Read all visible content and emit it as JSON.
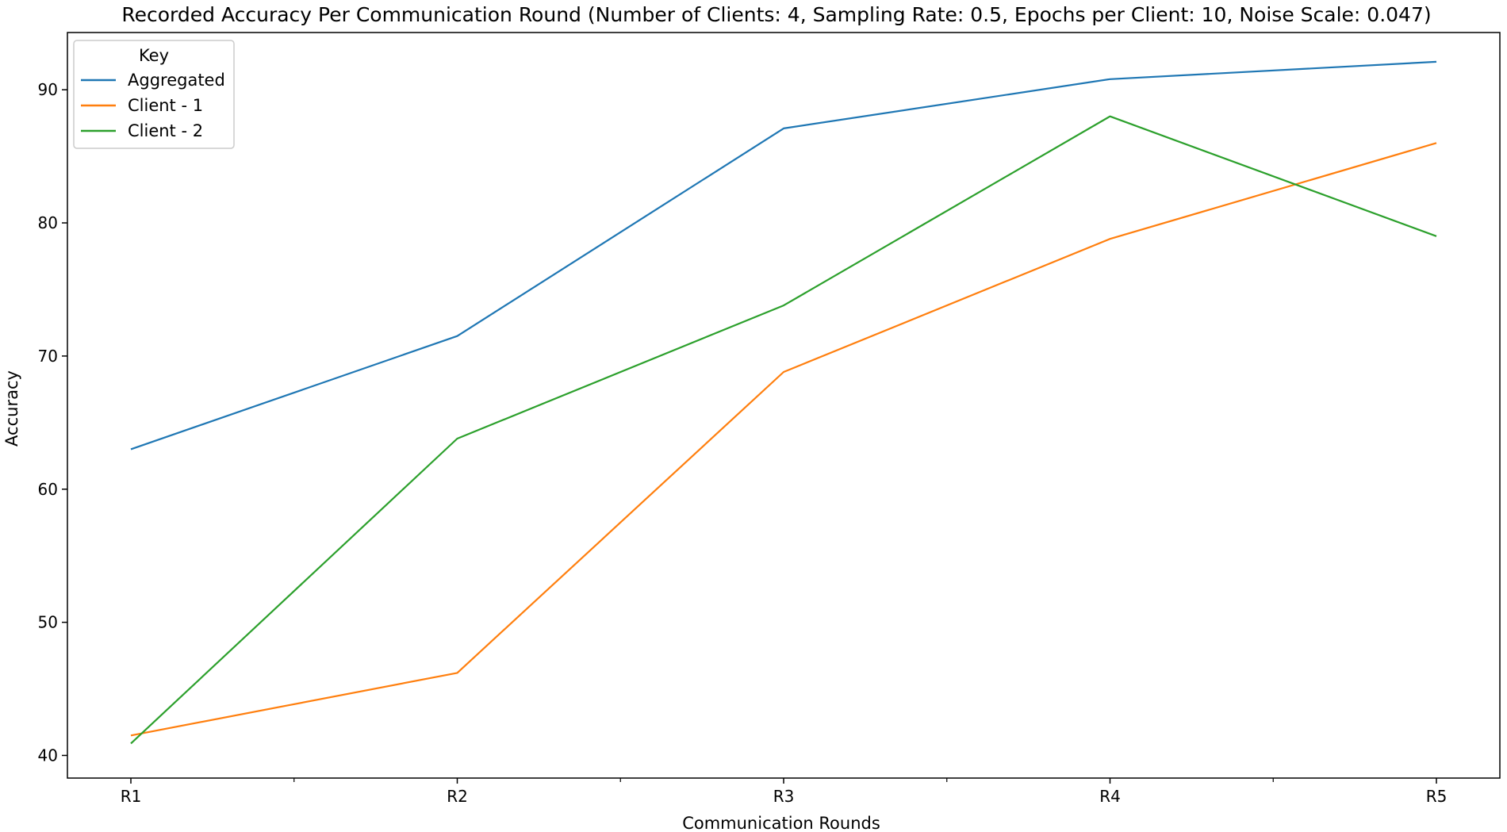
{
  "chart_data": {
    "type": "line",
    "title": "Recorded Accuracy Per Communication Round (Number of Clients: 4, Sampling Rate: 0.5, Epochs per Client: 10, Noise Scale: 0.047)",
    "xlabel": "Communication Rounds",
    "ylabel": "Accuracy",
    "categories": [
      "R1",
      "R2",
      "R3",
      "R4",
      "R5"
    ],
    "ylim": [
      38.3,
      94.3
    ],
    "yticks": [
      40,
      50,
      60,
      70,
      80,
      90
    ],
    "ytick_labels": [
      "40",
      "50",
      "60",
      "70",
      "80",
      "90"
    ],
    "grid": false,
    "legend": {
      "title": "Key",
      "placement": "top-left"
    },
    "series": [
      {
        "name": "Aggregated",
        "color": "#1f77b4",
        "values": [
          63.0,
          71.5,
          87.1,
          90.8,
          92.1
        ]
      },
      {
        "name": "Client - 1",
        "color": "#ff7f0e",
        "values": [
          41.5,
          46.2,
          68.8,
          78.8,
          86.0
        ]
      },
      {
        "name": "Client - 2",
        "color": "#2ca02c",
        "values": [
          40.9,
          63.8,
          73.8,
          88.0,
          79.0
        ]
      }
    ]
  }
}
